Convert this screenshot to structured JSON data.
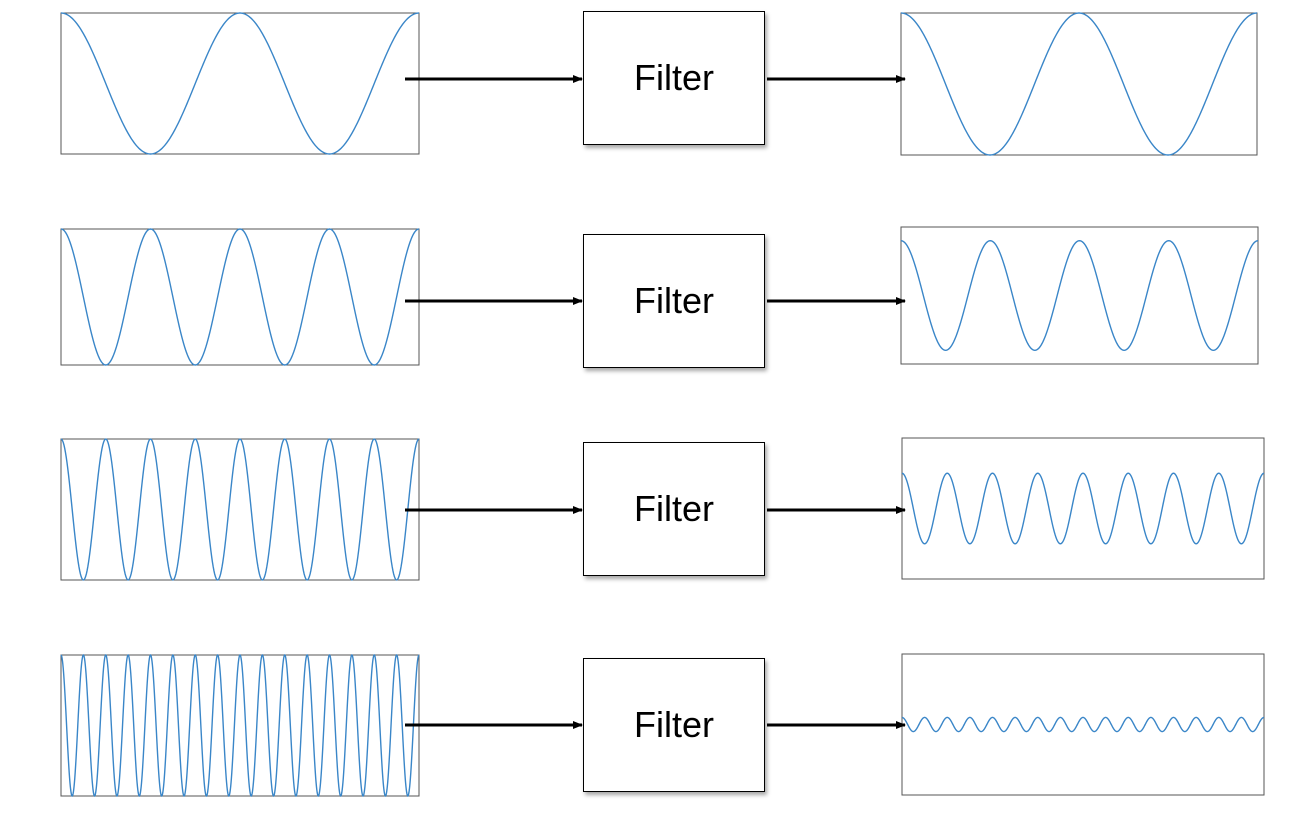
{
  "colors": {
    "wave": "#3a86c8",
    "frame": "#555555",
    "arrow": "#000000"
  },
  "rows": [
    {
      "filter_label": "Filter",
      "input_wave": {
        "cycles": 2,
        "amplitude": 1.0
      },
      "output_wave": {
        "cycles": 2,
        "amplitude": 1.0
      }
    },
    {
      "filter_label": "Filter",
      "input_wave": {
        "cycles": 4,
        "amplitude": 1.0
      },
      "output_wave": {
        "cycles": 4,
        "amplitude": 0.8
      }
    },
    {
      "filter_label": "Filter",
      "input_wave": {
        "cycles": 8,
        "amplitude": 1.0
      },
      "output_wave": {
        "cycles": 8,
        "amplitude": 0.5
      }
    },
    {
      "filter_label": "Filter",
      "input_wave": {
        "cycles": 16,
        "amplitude": 1.0
      },
      "output_wave": {
        "cycles": 16,
        "amplitude": 0.1
      }
    }
  ]
}
